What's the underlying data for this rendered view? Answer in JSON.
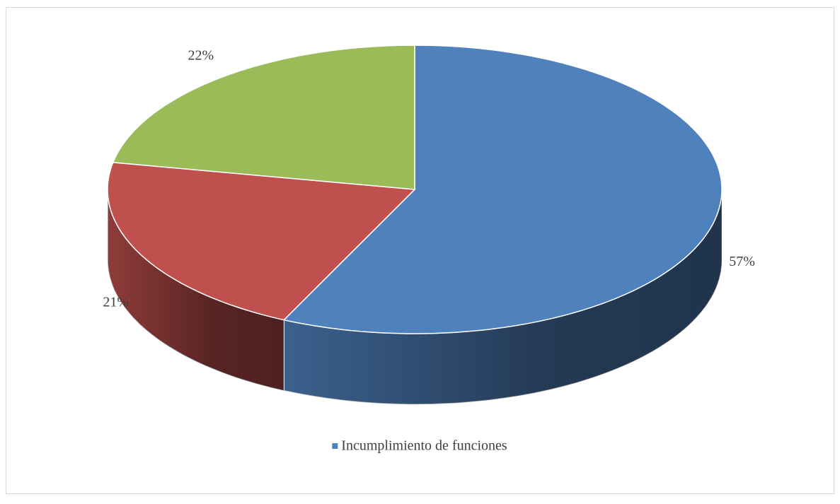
{
  "chart_data": {
    "type": "pie",
    "categories": [
      "Incumplimiento de funciones",
      null,
      null
    ],
    "values": [
      57,
      21,
      22
    ],
    "value_labels": [
      "57%",
      "21%",
      "22%"
    ],
    "colors": [
      "#4f81bd",
      "#c0504d",
      "#9bbb59"
    ],
    "legend": "bottom"
  }
}
